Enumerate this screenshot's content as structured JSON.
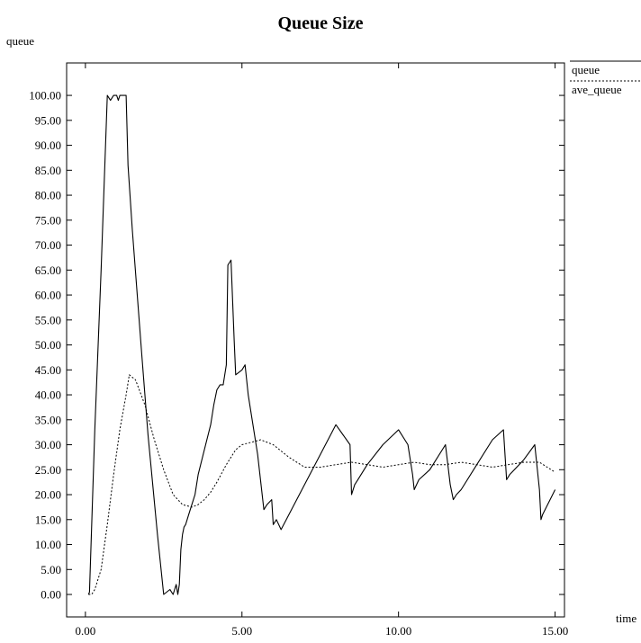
{
  "chart_data": {
    "type": "line",
    "title": "Queue Size",
    "xlabel": "time",
    "ylabel": "queue",
    "xlim": [
      -0.6,
      15.3
    ],
    "ylim": [
      -4.5,
      106.5
    ],
    "grid": false,
    "legend_position": "right",
    "x_ticks": [
      "0.00",
      "5.00",
      "10.00",
      "15.00"
    ],
    "x_tick_values": [
      0,
      5,
      10,
      15
    ],
    "y_ticks": [
      "0.00",
      "5.00",
      "10.00",
      "15.00",
      "20.00",
      "25.00",
      "30.00",
      "35.00",
      "40.00",
      "45.00",
      "50.00",
      "55.00",
      "60.00",
      "65.00",
      "70.00",
      "75.00",
      "80.00",
      "85.00",
      "90.00",
      "95.00",
      "100.00"
    ],
    "y_tick_values": [
      0,
      5,
      10,
      15,
      20,
      25,
      30,
      35,
      40,
      45,
      50,
      55,
      60,
      65,
      70,
      75,
      80,
      85,
      90,
      95,
      100
    ],
    "series": [
      {
        "name": "queue",
        "style": "solid",
        "color": "#000000",
        "x": [
          0.1,
          0.13,
          0.3,
          0.5,
          0.7,
          0.8,
          0.9,
          1.0,
          1.05,
          1.1,
          1.2,
          1.3,
          1.36,
          1.5,
          1.8,
          2.0,
          2.3,
          2.5,
          2.7,
          2.75,
          2.8,
          2.9,
          2.95,
          3.0,
          3.05,
          3.1,
          3.15,
          3.2,
          3.3,
          3.4,
          3.5,
          3.6,
          3.8,
          4.0,
          4.1,
          4.2,
          4.3,
          4.4,
          4.5,
          4.55,
          4.65,
          4.75,
          4.8,
          5.0,
          5.1,
          5.2,
          5.5,
          5.7,
          5.8,
          5.95,
          6.0,
          6.1,
          6.25,
          6.5,
          7.0,
          7.5,
          8.0,
          8.45,
          8.5,
          8.6,
          8.7,
          9.0,
          9.5,
          10.0,
          10.3,
          10.45,
          10.5,
          10.65,
          11.0,
          11.5,
          11.65,
          11.75,
          11.85,
          12.0,
          12.5,
          13.0,
          13.35,
          13.45,
          13.55,
          13.7,
          14.0,
          14.35,
          14.5,
          14.55,
          14.6,
          15.0
        ],
        "y": [
          0,
          0.5,
          33,
          65,
          100,
          99,
          100,
          100,
          99,
          100,
          100,
          100,
          86,
          73,
          48,
          32,
          12,
          0,
          1,
          0.5,
          0,
          2,
          0,
          2,
          9,
          12,
          13.5,
          14,
          16,
          18,
          20,
          24,
          29,
          34,
          38,
          41,
          42,
          42,
          46,
          66,
          67,
          51,
          44,
          45,
          46,
          40,
          28,
          17,
          18,
          19,
          14,
          15,
          13,
          16,
          22,
          28,
          34,
          30,
          20,
          22,
          23,
          26,
          30,
          33,
          30,
          24,
          21,
          23,
          25,
          30,
          22,
          19,
          20,
          21,
          26,
          31,
          33,
          23,
          24,
          25,
          27,
          30,
          21,
          15,
          16,
          21
        ]
      },
      {
        "name": "ave_queue",
        "style": "dashed",
        "color": "#000000",
        "x": [
          0.1,
          0.2,
          0.3,
          0.5,
          0.7,
          0.9,
          1.1,
          1.3,
          1.4,
          1.6,
          1.9,
          2.2,
          2.5,
          2.8,
          3.1,
          3.4,
          3.6,
          3.8,
          4.0,
          4.2,
          4.5,
          4.8,
          5.0,
          5.3,
          5.6,
          6.0,
          6.5,
          7.0,
          7.5,
          8.0,
          8.5,
          9.0,
          9.5,
          10.0,
          10.5,
          11.0,
          11.5,
          12.0,
          12.5,
          13.0,
          13.5,
          14.0,
          14.5,
          15.0
        ],
        "y": [
          0,
          0,
          1,
          5,
          14,
          24,
          33,
          40,
          44,
          43,
          38,
          31,
          25,
          20,
          18,
          17.5,
          18,
          19,
          20.5,
          22.5,
          26,
          29,
          30,
          30.5,
          31,
          30,
          27.5,
          25.5,
          25.5,
          26,
          26.5,
          26,
          25.5,
          26,
          26.5,
          26,
          26,
          26.5,
          26,
          25.5,
          26,
          26.5,
          26.5,
          24.5
        ]
      }
    ]
  }
}
